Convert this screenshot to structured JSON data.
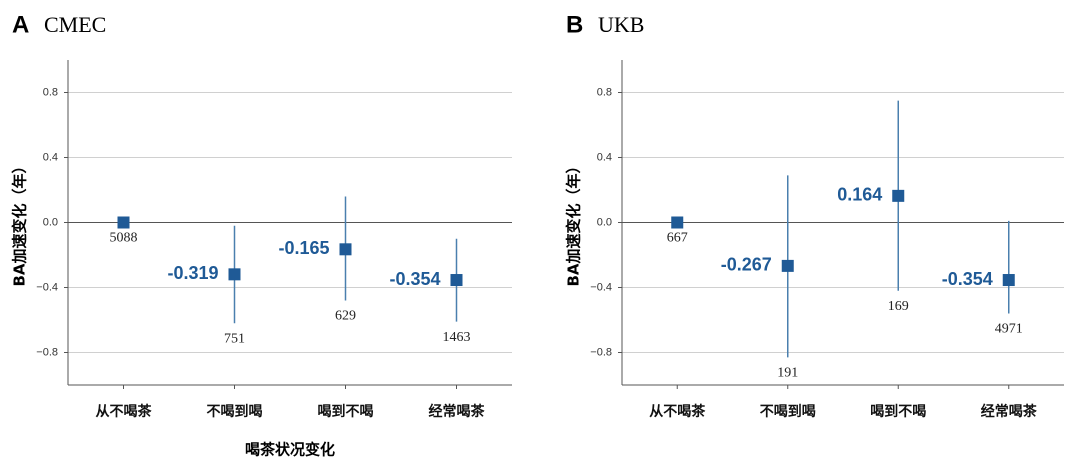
{
  "chart_data": [
    {
      "type": "errorpoint",
      "panel": "A",
      "title": "CMEC",
      "categories": [
        "从不喝茶",
        "不喝到喝",
        "喝到不喝",
        "经常喝茶"
      ],
      "values": [
        0,
        -0.319,
        -0.165,
        -0.354
      ],
      "value_labels": [
        null,
        "-0.319",
        "-0.165",
        "-0.354"
      ],
      "ci_low": [
        null,
        -0.62,
        -0.48,
        -0.61
      ],
      "ci_high": [
        null,
        -0.02,
        0.16,
        -0.1
      ],
      "counts": [
        5088,
        751,
        629,
        1463
      ],
      "color": "#1f5a96",
      "ylabel": "BA加速变化（年）",
      "xlabel": "喝茶状况变化",
      "ylim": [
        -1.0,
        1.0
      ],
      "yticks": [
        {
          "value": -0.8,
          "label": "−0.8"
        },
        {
          "value": -0.4,
          "label": "−0.4"
        },
        {
          "value": 0,
          "label": "0.0"
        },
        0.4,
        0.8
      ],
      "grid": true
    },
    {
      "type": "errorpoint",
      "panel": "B",
      "title": "UKB",
      "categories": [
        "从不喝茶",
        "不喝到喝",
        "喝到不喝",
        "经常喝茶"
      ],
      "values": [
        0,
        -0.267,
        0.164,
        -0.354
      ],
      "value_labels": [
        null,
        "-0.267",
        "0.164",
        "-0.354"
      ],
      "ci_low": [
        null,
        -0.83,
        -0.42,
        -0.56
      ],
      "ci_high": [
        null,
        0.29,
        0.75,
        0.01
      ],
      "counts": [
        667,
        191,
        169,
        4971
      ],
      "color": "#1f5a96",
      "ylabel": "BA加速变化（年）",
      "ylim": [
        -1.0,
        1.0
      ],
      "yticks": [
        {
          "value": -0.8,
          "label": "−0.8"
        },
        {
          "value": -0.4,
          "label": "−0.4"
        },
        {
          "value": 0,
          "label": "0.0"
        },
        0.4,
        0.8
      ],
      "grid": true
    }
  ]
}
